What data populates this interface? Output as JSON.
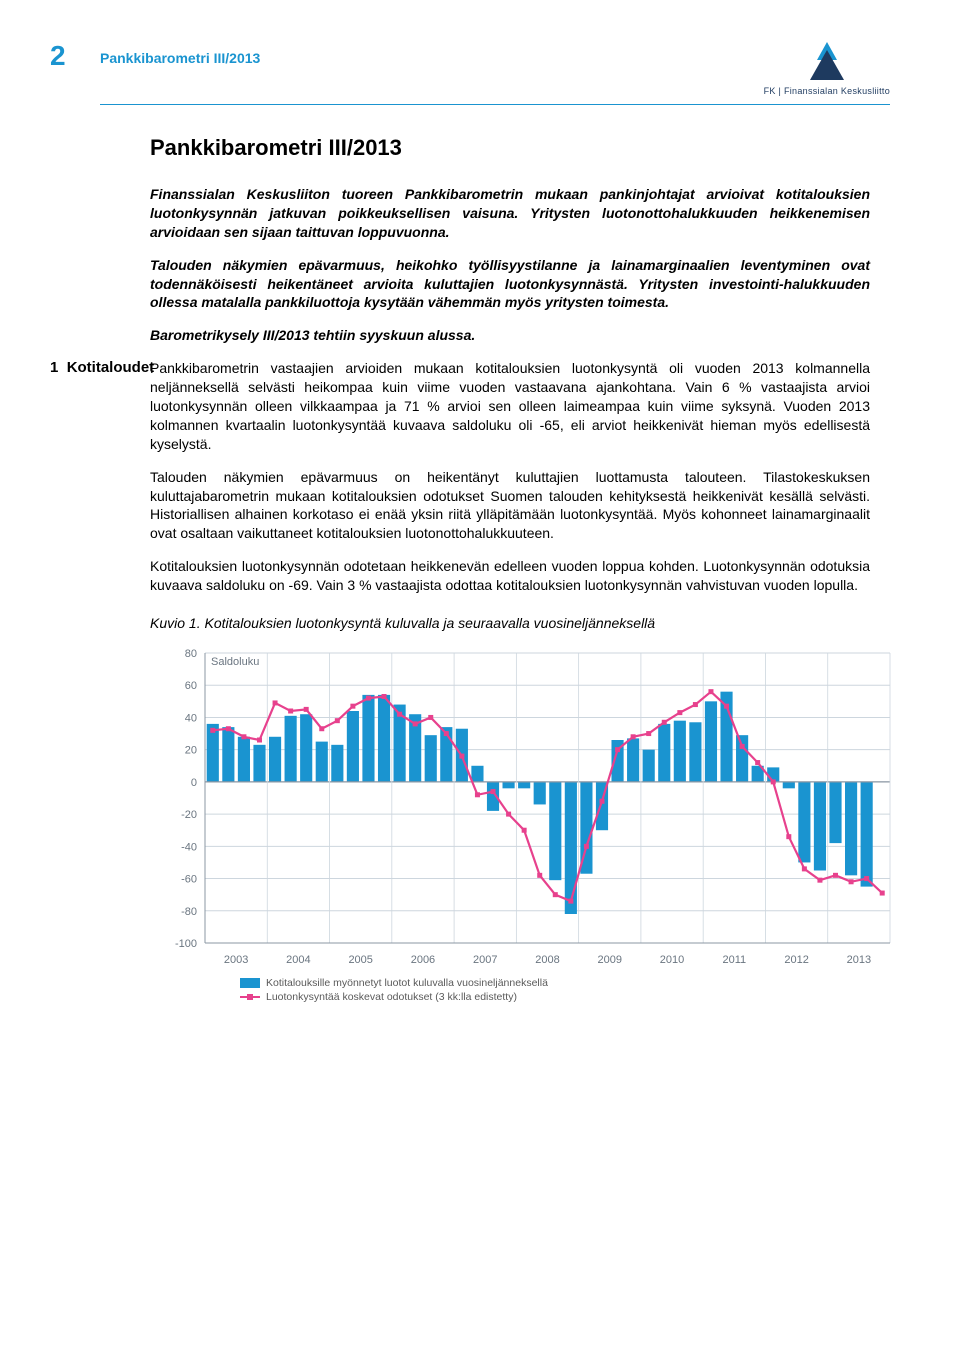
{
  "header": {
    "page_number": "2",
    "running_title": "Pankkibarometri III/2013",
    "logo_text": "FK | Finanssialan Keskusliitto",
    "logo_colors": {
      "top": "#1a94d0",
      "bottom": "#1e3a5f"
    }
  },
  "title": "Pankkibarometri III/2013",
  "section1": {
    "num": "1",
    "label": "Kotitaloudet"
  },
  "intro": {
    "p1": "Finanssialan Keskusliiton tuoreen Pankkibarometrin mukaan pankinjohtajat arvioivat kotitalouksien luotonkysynnän jatkuvan poikkeuksellisen vaisuna. Yritysten luotonottohalukkuuden heikkenemisen arvioidaan sen sijaan taittuvan loppuvuonna.",
    "p2": "Talouden näkymien epävarmuus, heikohko työllisyystilanne ja lainamarginaalien leventyminen ovat todennäköisesti heikentäneet arvioita kuluttajien luotonkysynnästä. Yritysten investointi-halukkuuden ollessa matalalla pankkiluottoja kysytään vähemmän myös yritysten toimesta.",
    "p3": "Barometrikysely III/2013 tehtiin syyskuun alussa."
  },
  "body": {
    "p1": "Pankkibarometrin vastaajien arvioiden mukaan kotitalouksien luotonkysyntä oli vuoden 2013 kolmannella neljänneksellä selvästi heikompaa kuin viime vuoden vastaavana ajankohtana. Vain 6 % vastaajista arvioi luotonkysynnän olleen vilkkaampaa ja 71 % arvioi sen olleen laimeampaa kuin viime syksynä. Vuoden 2013 kolmannen kvartaalin luotonkysyntää kuvaava saldoluku oli -65, eli arviot heikkenivät hieman myös edellisestä kyselystä.",
    "p2": "Talouden näkymien epävarmuus on heikentänyt kuluttajien luottamusta talouteen. Tilastokeskuksen kuluttajabarometrin mukaan kotitalouksien odotukset Suomen talouden kehityksestä heikkenivät kesällä selvästi. Historiallisen alhainen korkotaso ei enää yksin riitä ylläpitämään luotonkysyntää. Myös kohonneet lainamarginaalit ovat osaltaan vaikuttaneet kotitalouksien luotonottohalukkuuteen.",
    "p3": "Kotitalouksien luotonkysynnän odotetaan heikkenevän edelleen vuoden loppua kohden. Luotonkysynnän odotuksia kuvaava saldoluku on -69. Vain 3 % vastaajista odottaa kotitalouksien luotonkysynnän vahvistuvan vuoden lopulla."
  },
  "figure": {
    "caption": "Kuvio 1. Kotitalouksien luotonkysyntä kuluvalla ja seuraavalla vuosineljänneksellä",
    "axis_label": "Saldoluku",
    "ylim": [
      -100,
      80
    ],
    "ytick_step": 20,
    "years": [
      "2003",
      "2004",
      "2005",
      "2006",
      "2007",
      "2008",
      "2009",
      "2010",
      "2011",
      "2012",
      "2013"
    ],
    "bar_color": "#1a94d0",
    "line_color": "#e7418d",
    "grid_color": "#cdd6de",
    "axis_color": "#8b97a3",
    "bg_color": "#ffffff",
    "label_color": "#6a7580",
    "axis_fontsize": 11,
    "bars": [
      36,
      34,
      28,
      23,
      28,
      41,
      42,
      25,
      23,
      44,
      54,
      54,
      48,
      42,
      29,
      34,
      33,
      10,
      -18,
      -4,
      -4,
      -14,
      -61,
      -82,
      -57,
      -30,
      26,
      27,
      20,
      36,
      38,
      37,
      50,
      56,
      29,
      10,
      9,
      -4,
      -50,
      -55,
      -38,
      -58,
      -65
    ],
    "line": [
      32,
      33,
      28,
      26,
      49,
      44,
      45,
      33,
      38,
      47,
      52,
      53,
      42,
      36,
      40,
      30,
      16,
      -8,
      -6,
      -20,
      -30,
      -58,
      -70,
      -74,
      -40,
      -12,
      20,
      28,
      30,
      37,
      43,
      48,
      56,
      47,
      22,
      12,
      0,
      -34,
      -54,
      -61,
      -58,
      -62,
      -60,
      -69
    ],
    "legend1": "Kotitalouksille myönnetyt luotot kuluvalla vuosineljänneksellä",
    "legend2": "Luotonkysyntää koskevat odotukset (3 kk:lla edistetty)"
  }
}
